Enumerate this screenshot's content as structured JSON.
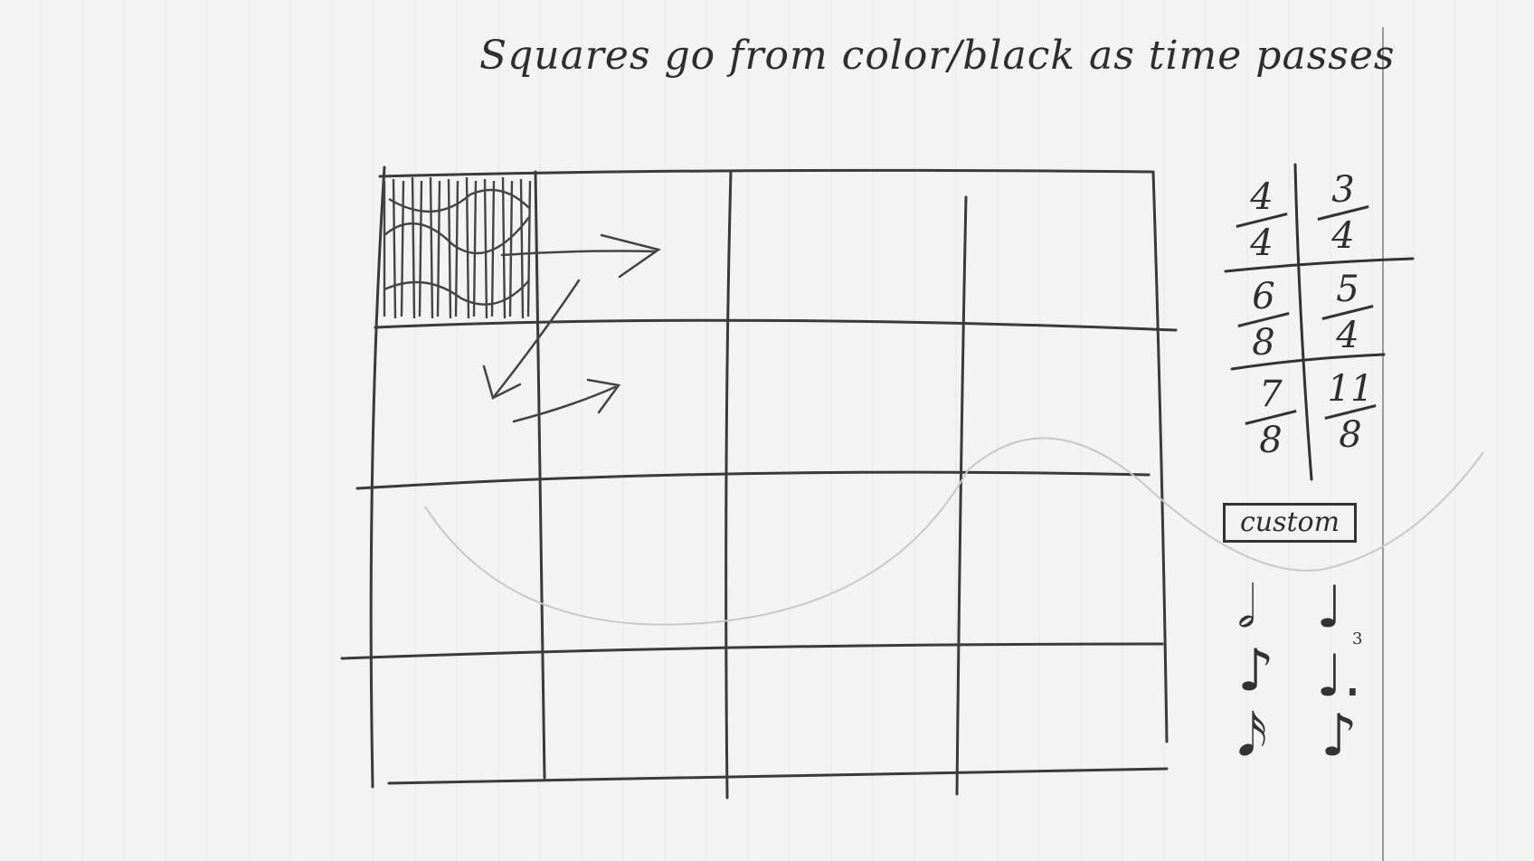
{
  "note": {
    "title": "Squares go from color/black as time passes"
  },
  "time_signatures": [
    {
      "num": "4",
      "den": "4"
    },
    {
      "num": "3",
      "den": "4"
    },
    {
      "num": "6",
      "den": "8"
    },
    {
      "num": "5",
      "den": "4"
    },
    {
      "num": "7",
      "den": "8"
    },
    {
      "num": "11",
      "den": "8"
    }
  ],
  "custom_button": {
    "label": "custom"
  },
  "note_values": {
    "half": "𝅗𝅥",
    "quarter": "♩",
    "eighth": "♪",
    "dotted_quarter": "♩.",
    "sixteenth": "𝅘𝅥𝅯",
    "triplet_label": "3"
  },
  "grid": {
    "rows": 4,
    "cols": 4,
    "filled_cell": [
      0,
      0
    ]
  }
}
